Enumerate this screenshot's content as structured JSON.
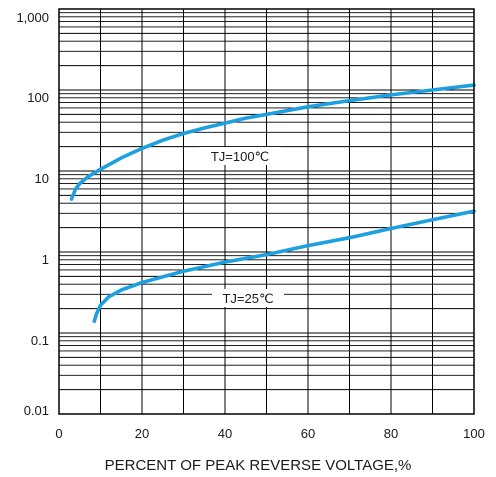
{
  "chart_data": {
    "type": "line",
    "title": "",
    "xlabel": "PERCENT OF PEAK REVERSE VOLTAGE,%",
    "ylabel": "",
    "xlim": [
      0,
      100
    ],
    "ylim": [
      0.01,
      1000
    ],
    "yscale": "log",
    "grid": true,
    "x_ticks": [
      "0",
      "20",
      "40",
      "60",
      "80",
      "100"
    ],
    "y_ticks": [
      "0.01",
      "0.1",
      "1",
      "10",
      "100",
      "1,000"
    ],
    "series": [
      {
        "name": "TJ=100℃",
        "color": "#1ea0e0",
        "points": [
          [
            3,
            4.5
          ],
          [
            4,
            6
          ],
          [
            5,
            7
          ],
          [
            7,
            8.5
          ],
          [
            10,
            10.5
          ],
          [
            15,
            14.5
          ],
          [
            20,
            19
          ],
          [
            25,
            24
          ],
          [
            30,
            29
          ],
          [
            35,
            34
          ],
          [
            40,
            39
          ],
          [
            45,
            45
          ],
          [
            50,
            50
          ],
          [
            60,
            62
          ],
          [
            70,
            74
          ],
          [
            80,
            87
          ],
          [
            90,
            100
          ],
          [
            100,
            115
          ]
        ]
      },
      {
        "name": "TJ=25℃",
        "color": "#1ea0e0",
        "points": [
          [
            8.5,
            0.14
          ],
          [
            9,
            0.17
          ],
          [
            10,
            0.22
          ],
          [
            12,
            0.28
          ],
          [
            15,
            0.34
          ],
          [
            20,
            0.42
          ],
          [
            30,
            0.58
          ],
          [
            40,
            0.75
          ],
          [
            50,
            0.93
          ],
          [
            60,
            1.2
          ],
          [
            70,
            1.5
          ],
          [
            80,
            1.95
          ],
          [
            90,
            2.5
          ],
          [
            100,
            3.2
          ]
        ]
      }
    ],
    "annotations": [
      {
        "text": "TJ=100℃",
        "x": 36,
        "y": 30
      },
      {
        "text": "TJ=25℃",
        "x": 38,
        "y": 0.45
      }
    ]
  }
}
